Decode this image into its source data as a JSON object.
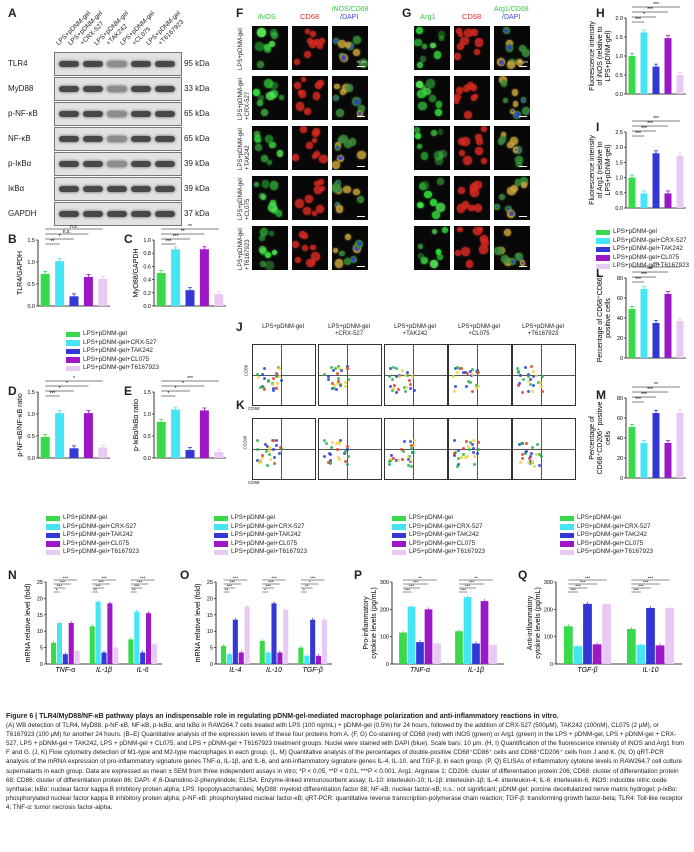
{
  "panel_letters": {
    "A": "A",
    "B": "B",
    "C": "C",
    "D": "D",
    "E": "E",
    "F": "F",
    "G": "G",
    "H": "H",
    "I": "I",
    "J": "J",
    "K": "K",
    "L": "L",
    "M": "M",
    "N": "N",
    "O": "O",
    "P": "P",
    "Q": "Q"
  },
  "colors": {
    "g1": "#38d94a",
    "g2": "#44e6f6",
    "g3": "#3237d6",
    "g4": "#9c17c6",
    "g5": "#e8c9f2"
  },
  "groups": [
    "LPS+pDNM-gel",
    "LPS+pDNM-gel+CRX-527",
    "LPS+pDNM-gel+TAK242",
    "LPS+pDNM-gel+CL075",
    "LPS+pDNM-gel+T6167923"
  ],
  "western": {
    "lane_labels": [
      "LPS+pDNM-gel",
      "LPS+pDNM-gel",
      "+CRX-527",
      "LPS+pDNM-gel",
      "+TAK242",
      "LPS+pDNM-gel",
      "+CL075",
      "LPS+pDNM-gel",
      "+T6167923"
    ],
    "proteins": [
      {
        "name": "TLR4",
        "kda": "95 kDa"
      },
      {
        "name": "MyD88",
        "kda": "33 kDa"
      },
      {
        "name": "p-NF-κB",
        "kda": "65 kDa"
      },
      {
        "name": "NF-κB",
        "kda": "65 kDa"
      },
      {
        "name": "p-IκBα",
        "kda": "39 kDa"
      },
      {
        "name": "IκBα",
        "kda": "39 kDa"
      },
      {
        "name": "GAPDH",
        "kda": "37 kDa"
      }
    ]
  },
  "micro": {
    "F_headers": [
      "iNOS",
      "CD68",
      "iNOS/CD68",
      "/DAPI"
    ],
    "G_headers": [
      "Arg1",
      "CD68",
      "Arg1/CD68",
      "/DAPI"
    ],
    "row_labels": [
      [
        "LPS+pDNM-gel"
      ],
      [
        "LPS+pDNM-gel",
        "+CRX-527"
      ],
      [
        "LPS+pDNM-gel",
        "+TAK242"
      ],
      [
        "LPS+pDNM-gel",
        "+CL075"
      ],
      [
        "LPS+pDNM-gel",
        "+T6167923"
      ]
    ],
    "scale": "10 μm"
  },
  "flow": {
    "col_labels": [
      [
        "LPS+pDNM-gel"
      ],
      [
        "LPS+pDNM-gel",
        "+CRX-527"
      ],
      [
        "LPS+pDNM-gel",
        "+TAK242"
      ],
      [
        "LPS+pDNM-gel",
        "+CL075"
      ],
      [
        "LPS+pDNM-gel",
        "+T6167923"
      ]
    ],
    "J_y": "CD86",
    "J_x": "CD68",
    "K_y": "CD206",
    "K_x": "CD68"
  },
  "chart_data": [
    {
      "id": "B",
      "type": "bar",
      "ylabel": "TLR4/GAPDH",
      "ylim": [
        0,
        1.5
      ],
      "yticks": [
        "0.0",
        "0.5",
        "1.0",
        "1.5"
      ],
      "values": [
        0.73,
        1.02,
        0.22,
        0.66,
        0.62
      ],
      "sig": [
        "**",
        "*",
        "n.s.",
        "n.s."
      ]
    },
    {
      "id": "C",
      "type": "bar",
      "ylabel": "MyD88/GAPDH",
      "ylim": [
        0,
        1.0
      ],
      "yticks": [
        "0.0",
        "0.2",
        "0.4",
        "0.6",
        "0.8",
        "1.0"
      ],
      "values": [
        0.5,
        0.86,
        0.24,
        0.86,
        0.18
      ],
      "sig": [
        "***",
        "***",
        "**",
        "**"
      ]
    },
    {
      "id": "D",
      "type": "bar",
      "ylabel": "p-NF-κB/NF-κB ratio",
      "ylim": [
        0,
        1.5
      ],
      "yticks": [
        "0.0",
        "0.5",
        "1.0",
        "1.5"
      ],
      "values": [
        0.48,
        1.02,
        0.22,
        1.02,
        0.24
      ],
      "sig": [
        "***",
        "*",
        "*",
        "*"
      ]
    },
    {
      "id": "E",
      "type": "bar",
      "ylabel": "p-IκBα/IκBα ratio",
      "ylim": [
        0,
        1.5
      ],
      "yticks": [
        "0.0",
        "0.5",
        "1.0",
        "1.5"
      ],
      "values": [
        0.82,
        1.1,
        0.18,
        1.08,
        0.14
      ],
      "sig": [
        "*",
        "*",
        "*",
        "***"
      ]
    },
    {
      "id": "H",
      "type": "bar",
      "ylabel": "Fluorescence intensity of iNOS (relative to LPS+pDNM-gel)",
      "ylim": [
        0,
        2.0
      ],
      "yticks": [
        "0.0",
        "0.5",
        "1.0",
        "1.5",
        "2.0"
      ],
      "values": [
        1.0,
        1.62,
        0.72,
        1.47,
        0.5
      ],
      "sig": [
        "***",
        "*",
        "***",
        "***"
      ]
    },
    {
      "id": "I",
      "type": "bar",
      "ylabel": "Fluorescence intensity of Arg1 (relative to LPS+pDNM-gel)",
      "ylim": [
        0,
        2.5
      ],
      "yticks": [
        "0.0",
        "0.5",
        "1.0",
        "1.5",
        "2.0",
        "2.5"
      ],
      "values": [
        1.0,
        0.48,
        1.8,
        0.48,
        1.72
      ],
      "sig": [
        "***",
        "***",
        "***",
        "***"
      ]
    },
    {
      "id": "L",
      "type": "bar",
      "ylabel": "Percentage of CD68⁺CD86⁺ positive cells",
      "ylim": [
        0,
        80
      ],
      "yticks": [
        "0",
        "20",
        "40",
        "60",
        "80"
      ],
      "values": [
        49,
        69,
        35,
        64,
        37
      ],
      "sig": [
        "***",
        "***",
        "***",
        "***"
      ]
    },
    {
      "id": "M",
      "type": "bar",
      "ylabel": "Percentage of CD68⁺CD206⁺ positive cells",
      "ylim": [
        0,
        80
      ],
      "yticks": [
        "0",
        "20",
        "40",
        "60",
        "80"
      ],
      "values": [
        51,
        35,
        65,
        35,
        65
      ],
      "sig": [
        "***",
        "***",
        "***",
        "**"
      ]
    },
    {
      "id": "N",
      "type": "bar",
      "ylabel": "mRNA relative level (fold)",
      "ylim": [
        0,
        25
      ],
      "yticks": [
        "0",
        "5",
        "10",
        "15",
        "20",
        "25"
      ],
      "categories": [
        "TNF-α",
        "IL-1β",
        "IL-6"
      ],
      "series": [
        [
          6.5,
          12.5,
          3.0,
          12.5,
          4.0
        ],
        [
          11.5,
          19,
          3.5,
          18.5,
          5
        ],
        [
          7.5,
          16,
          3.5,
          15.5,
          6
        ]
      ],
      "sig": [
        "*",
        "***",
        "***",
        "***",
        "**",
        "***",
        "***",
        "***",
        "**",
        "***",
        "***",
        "***"
      ]
    },
    {
      "id": "O",
      "type": "bar",
      "ylabel": "mRNA relative level (fold)",
      "ylim": [
        0,
        25
      ],
      "yticks": [
        "0",
        "5",
        "10",
        "15",
        "20",
        "25"
      ],
      "categories": [
        "IL-4",
        "IL-10",
        "TGF-β"
      ],
      "series": [
        [
          5.5,
          3.0,
          13.5,
          3.5,
          17.5
        ],
        [
          7,
          3.5,
          18.5,
          3.5,
          16.5
        ],
        [
          5,
          2.5,
          13.5,
          2.5,
          13.5
        ]
      ],
      "sig": [
        "**",
        "***",
        "***",
        "***",
        "*",
        "***",
        "***",
        "***",
        "*",
        "**",
        "*",
        "***"
      ]
    },
    {
      "id": "P",
      "type": "bar",
      "ylabel": "Pro-inflammatory cytokine levels (pg/mL)",
      "ylim": [
        0,
        300
      ],
      "yticks": [
        "0",
        "100",
        "200",
        "300"
      ],
      "categories": [
        "TNF-α",
        "IL-1β"
      ],
      "series": [
        [
          115,
          210,
          80,
          200,
          75
        ],
        [
          120,
          245,
          75,
          230,
          70
        ]
      ],
      "sig": [
        "***",
        "***",
        "***",
        "**",
        "***",
        "***",
        "***",
        "**"
      ]
    },
    {
      "id": "Q",
      "type": "bar",
      "ylabel": "Anti-inflammatory cytokine levels (pg/mL)",
      "ylim": [
        0,
        300
      ],
      "yticks": [
        "0",
        "100",
        "200",
        "300"
      ],
      "categories": [
        "TGF-β",
        "IL-10"
      ],
      "series": [
        [
          138,
          65,
          220,
          72,
          220
        ],
        [
          128,
          70,
          205,
          68,
          205
        ]
      ],
      "sig": [
        "***",
        "***",
        "***",
        "***",
        "***",
        "***",
        "***",
        "***"
      ]
    }
  ],
  "caption": {
    "title": "Figure 6  |  TLR4/MyD88/NF-κB pathway plays an indispensable role in regulating pDNM-gel-mediated macrophage polarization and anti-inflammatory reactions in vitro.",
    "body": "(A) WB detection of TLR4, MyD88, p-NF-κB, NF-κB, p-IκBα, and IκBα in RAW264.7 cells treated with LPS (100 ng/mL) + pDNM-gel (0.5%) for 24 hours, followed by the addition of CRX-527 (500μM), TAK242 (100nM), CL075 (2 μM), or T6167923 (100 μM) for another 24 hours. (B–E) Quantitative analysis of the expression levels of these four proteins from A. (F, G) Co-staining of CD68 (red) with iNOS (green) or Arg1 (green) in the LPS + pDNM-gel, LPS + pDNM-gel + CRX-527, LPS + pDNM-gel + TAK242, LPS + pDNM-gel + CL075, and LPS + pDNM-gel + T6167923 treatment groups. Nuclei were stained with DAPI (blue). Scale bars: 10 μm. (H, I) Quantification of the fluorescence intensity of iNOS and Arg1 from F and G. (J, K) Flow cytometry detection of M1-type and M2-type macrophages in each group. (L, M) Quantitative analysis of the percentages of double-positive CD68⁺CD86⁺ cells and CD68⁺CD206⁺ cells from J and K. (N, O) qRT-PCR analysis of the mRNA expression of pro-inflammatory signature genes TNF-α, IL-1β, and IL-6, and anti-inflammatory signature genes IL-4, IL-10, and TGF-β, in each group. (P, Q) ELISAs of inflammatory cytokine levels in RAW264.7 cell culture supernatants in each group. Data are expressed as mean ± SEM from three independent assays in vitro; *P < 0.05, **P < 0.01, ***P < 0.001. Arg1: Arginase 1; CD206: cluster of differentiation protein 206; CD68: cluster of differentiation protein 68; CD86: cluster of differentiation protein 86; DAPI: 4′,6-Diamidino-2-phenylindole; ELISA: Enzyme-linked immunosorbent assay; IL-10: interleukin-10; IL-1β: interleukin-1β; IL-4: interleukin-4; IL-6: interleukin-6; iNOS: inducible nitric oxide synthase; IκBα: nuclear factor kappa B inhibitory protein alpha; LPS: lipopolysaccharides; MyD88: myeloid differentiation factor 88; NF-κB: nuclear factor-κB; n.s.: not significant; pDNM-gel: porcine decellularized nerve matrix hydrogel; p-IκBα: phosphorylated nuclear factor kappa B inhibitory protein alpha; p-NF-κB: phosphorylated nuclear factor-κB; qRT-PCR: quantitative reverse transcription-polymerase chain reaction; TGF-β: transforming growth factor-beta; TLR4: Toll-like receptor 4; TNF-α: tumor necrosis factor-alpha."
  }
}
